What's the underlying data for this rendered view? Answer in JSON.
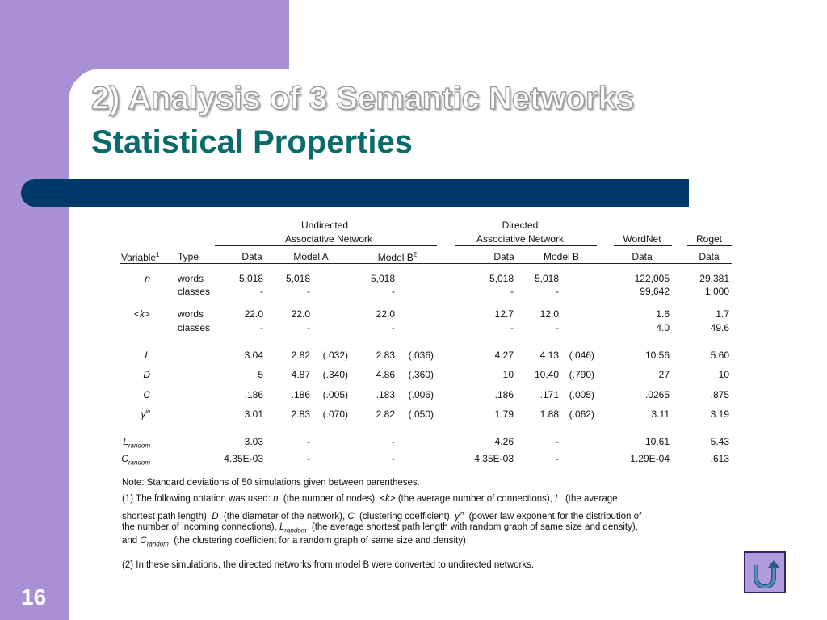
{
  "title_line1": "2) Analysis of 3 Semantic Networks",
  "title_line2": "Statistical Properties",
  "slide_number": "16",
  "colors": {
    "background": "#a98fd4",
    "title2": "#0b6b6b",
    "bar": "#003a6b"
  },
  "home_icon": "u-turn-return-icon",
  "table": {
    "group_undirected_1": "Undirected",
    "group_undirected_2": "Associative Network",
    "group_directed_1": "Directed",
    "group_directed_2": "Associative Network",
    "group_wordnet": "WordNet",
    "group_roget": "Roget",
    "col_variable": "Variable",
    "col_variable_sup": "1",
    "col_type": "Type",
    "col_u_data": "Data",
    "col_u_modela": "Model A",
    "col_u_modelb": "Model B",
    "col_u_modelb_sup": "2",
    "col_d_data": "Data",
    "col_d_modelb": "Model B",
    "col_w_data": "Data",
    "col_r_data": "Data",
    "rows": [
      {
        "var": "n",
        "type": "words",
        "u_data": "5,018",
        "u_a": "5,018",
        "u_a_sd": "",
        "u_b": "5,018",
        "u_b_sd": "",
        "d_data": "5,018",
        "d_b": "5,018",
        "d_b_sd": "",
        "w": "122,005",
        "r": "29,381"
      },
      {
        "var": "",
        "type": "classes",
        "u_data": "-",
        "u_a": "-",
        "u_a_sd": "",
        "u_b": "-",
        "u_b_sd": "",
        "d_data": "-",
        "d_b": "-",
        "d_b_sd": "",
        "w": "99,642",
        "r": "1,000"
      },
      {
        "var": "<k>",
        "type": "words",
        "u_data": "22.0",
        "u_a": "22.0",
        "u_a_sd": "",
        "u_b": "22.0",
        "u_b_sd": "",
        "d_data": "12.7",
        "d_b": "12.0",
        "d_b_sd": "",
        "w": "1.6",
        "r": "1.7"
      },
      {
        "var": "",
        "type": "classes",
        "u_data": "-",
        "u_a": "-",
        "u_a_sd": "",
        "u_b": "-",
        "u_b_sd": "",
        "d_data": "-",
        "d_b": "-",
        "d_b_sd": "",
        "w": "4.0",
        "r": "49.6"
      },
      {
        "var": "L",
        "type": "",
        "u_data": "3.04",
        "u_a": "2.82",
        "u_a_sd": "(.032)",
        "u_b": "2.83",
        "u_b_sd": "(.036)",
        "d_data": "4.27",
        "d_b": "4.13",
        "d_b_sd": "(.046)",
        "w": "10.56",
        "r": "5.60"
      },
      {
        "var": "D",
        "type": "",
        "u_data": "5",
        "u_a": "4.87",
        "u_a_sd": "(.340)",
        "u_b": "4.86",
        "u_b_sd": "(.360)",
        "d_data": "10",
        "d_b": "10.40",
        "d_b_sd": "(.790)",
        "w": "27",
        "r": "10"
      },
      {
        "var": "C",
        "type": "",
        "u_data": ".186",
        "u_a": ".186",
        "u_a_sd": "(.005)",
        "u_b": ".183",
        "u_b_sd": "(.006)",
        "d_data": ".186",
        "d_b": ".171",
        "d_b_sd": "(.005)",
        "w": ".0265",
        "r": ".875"
      },
      {
        "var": "γ",
        "var_sup": "in",
        "type": "",
        "u_data": "3.01",
        "u_a": "2.83",
        "u_a_sd": "(.070)",
        "u_b": "2.82",
        "u_b_sd": "(.050)",
        "d_data": "1.79",
        "d_b": "1.88",
        "d_b_sd": "(.062)",
        "w": "3.11",
        "r": "3.19"
      },
      {
        "var": "L",
        "var_sub": "random",
        "type": "",
        "u_data": "3.03",
        "u_a": "-",
        "u_a_sd": "",
        "u_b": "-",
        "u_b_sd": "",
        "d_data": "4.26",
        "d_b": "-",
        "d_b_sd": "",
        "w": "10.61",
        "r": "5.43"
      },
      {
        "var": "C",
        "var_sub": "random",
        "type": "",
        "u_data": "4.35E-03",
        "u_a": "-",
        "u_a_sd": "",
        "u_b": "-",
        "u_b_sd": "",
        "d_data": "4.35E-03",
        "d_b": "-",
        "d_b_sd": "",
        "w": "1.29E-04",
        "r": ".613"
      }
    ],
    "note": "Note: Standard deviations of 50 simulations given between parentheses.",
    "fn1_line1": "(1) The following notation was used: n  (the number of nodes), <k> (the average number of connections), L  (the average",
    "fn1_line2": "shortest path length), D  (the diameter of the network), C  (clustering coefficient), γin  (power law exponent for the distribution of",
    "fn1_line3": "the number of incoming connections), L random  (the average shortest path length with random graph of same size and density),",
    "fn1_line4": "and C random  (the clustering coefficient for a random graph of same size and density)",
    "fn2": "(2) In these simulations, the directed networks from model B were converted to undirected networks."
  }
}
